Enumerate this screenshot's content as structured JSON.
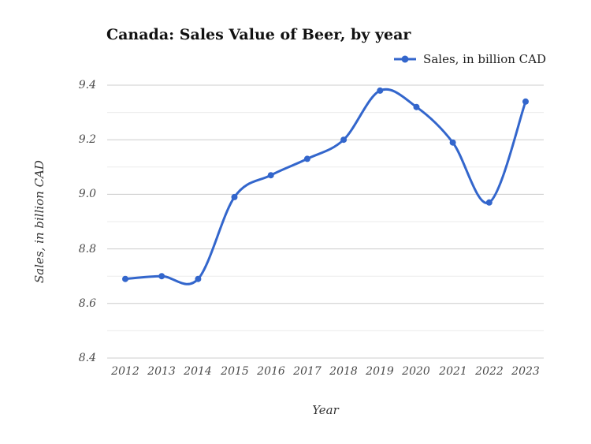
{
  "title": "Canada: Sales Value of Beer, by year",
  "legend": {
    "label": "Sales, in billion CAD"
  },
  "axes": {
    "x_title": "Year",
    "y_title": "Sales, in billion CAD",
    "y_tick_labels": [
      "9.4",
      "9.2",
      "9.0",
      "8.8",
      "8.6",
      "8.4"
    ],
    "x_tick_labels": [
      "2012",
      "2013",
      "2014",
      "2015",
      "2016",
      "2017",
      "2018",
      "2019",
      "2020",
      "2021",
      "2022",
      "2023"
    ]
  },
  "colors": {
    "line": "#3366cc",
    "grid_major": "#cccccc",
    "grid_minor": "#ebebeb",
    "tick_text": "#4a4a4a",
    "title_text": "#111111"
  },
  "chart_data": {
    "type": "line",
    "x": [
      2012,
      2013,
      2014,
      2015,
      2016,
      2017,
      2018,
      2019,
      2020,
      2021,
      2022,
      2023
    ],
    "series": [
      {
        "name": "Sales, in billion CAD",
        "values": [
          8.69,
          8.7,
          8.69,
          8.99,
          9.07,
          9.13,
          9.2,
          9.38,
          9.32,
          9.19,
          8.97,
          9.34
        ]
      }
    ],
    "title": "Canada: Sales Value of Beer, by year",
    "xlabel": "Year",
    "ylabel": "Sales, in billion CAD",
    "ylim": [
      8.4,
      9.4
    ],
    "ytick_step": 0.1,
    "ytick_label_step": 0.2,
    "grid": true,
    "legend_position": "top-right",
    "smooth": true,
    "markers": true,
    "line_color": "#3366cc"
  }
}
